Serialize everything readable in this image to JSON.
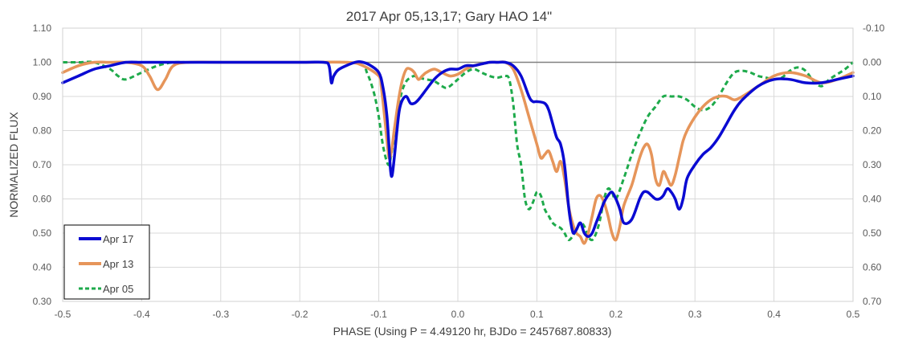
{
  "chart_data": {
    "type": "line",
    "title": "2017 Apr 05,13,17; Gary HAO 14\"",
    "xlabel": "PHASE (Using P = 4.49120 hr, BJDo = 2457687.80833)",
    "ylabel": "NORMALIZED FLUX",
    "xlim": [
      -0.5,
      0.5
    ],
    "ylim": [
      0.3,
      1.1
    ],
    "y2lim": [
      0.7,
      -0.1
    ],
    "grid": true,
    "legend_position": "bottom-left",
    "x_ticks": [
      "-0.5",
      "-0.4",
      "-0.3",
      "-0.2",
      "-0.1",
      "0.0",
      "0.1",
      "0.2",
      "0.3",
      "0.4",
      "0.5"
    ],
    "y_ticks": [
      "0.30",
      "0.40",
      "0.50",
      "0.60",
      "0.70",
      "0.80",
      "0.90",
      "1.00",
      "1.10"
    ],
    "y2_ticks": [
      "0.70",
      "0.60",
      "0.50",
      "0.40",
      "0.30",
      "0.20",
      "0.10",
      "0.00",
      "-0.10"
    ],
    "reference_line": 1.0,
    "series": [
      {
        "name": "Apr 17",
        "color": "#0a0ad2",
        "style": "solid",
        "x": [
          -0.5,
          -0.48,
          -0.46,
          -0.44,
          -0.42,
          -0.4,
          -0.38,
          -0.36,
          -0.3,
          -0.2,
          -0.17,
          -0.163,
          -0.16,
          -0.157,
          -0.15,
          -0.13,
          -0.12,
          -0.11,
          -0.1,
          -0.095,
          -0.09,
          -0.087,
          -0.085,
          -0.083,
          -0.08,
          -0.077,
          -0.074,
          -0.07,
          -0.065,
          -0.06,
          -0.055,
          -0.05,
          -0.04,
          -0.03,
          -0.02,
          -0.01,
          0.0,
          0.01,
          0.02,
          0.03,
          0.04,
          0.05,
          0.06,
          0.07,
          0.08,
          0.09,
          0.095,
          0.1,
          0.11,
          0.115,
          0.12,
          0.125,
          0.13,
          0.135,
          0.14,
          0.143,
          0.146,
          0.15,
          0.155,
          0.16,
          0.165,
          0.17,
          0.175,
          0.18,
          0.185,
          0.19,
          0.195,
          0.2,
          0.205,
          0.21,
          0.22,
          0.23,
          0.235,
          0.24,
          0.245,
          0.25,
          0.255,
          0.26,
          0.265,
          0.27,
          0.275,
          0.28,
          0.285,
          0.29,
          0.3,
          0.31,
          0.32,
          0.33,
          0.34,
          0.35,
          0.36,
          0.38,
          0.4,
          0.42,
          0.44,
          0.46,
          0.48,
          0.5
        ],
        "y": [
          0.94,
          0.96,
          0.98,
          0.99,
          1.0,
          1.0,
          1.0,
          1.0,
          1.0,
          1.0,
          1.0,
          0.99,
          0.94,
          0.96,
          0.98,
          1.0,
          1.0,
          0.99,
          0.97,
          0.93,
          0.85,
          0.75,
          0.68,
          0.67,
          0.73,
          0.8,
          0.86,
          0.89,
          0.9,
          0.88,
          0.88,
          0.89,
          0.92,
          0.95,
          0.97,
          0.98,
          0.98,
          0.99,
          0.99,
          0.995,
          1.0,
          1.0,
          1.0,
          0.99,
          0.96,
          0.9,
          0.885,
          0.885,
          0.88,
          0.86,
          0.82,
          0.78,
          0.76,
          0.7,
          0.58,
          0.53,
          0.5,
          0.51,
          0.53,
          0.5,
          0.49,
          0.5,
          0.53,
          0.56,
          0.59,
          0.61,
          0.62,
          0.6,
          0.57,
          0.53,
          0.54,
          0.6,
          0.62,
          0.62,
          0.61,
          0.6,
          0.6,
          0.61,
          0.63,
          0.62,
          0.6,
          0.57,
          0.6,
          0.66,
          0.7,
          0.73,
          0.75,
          0.78,
          0.82,
          0.86,
          0.89,
          0.93,
          0.95,
          0.95,
          0.94,
          0.94,
          0.95,
          0.96
        ]
      },
      {
        "name": "Apr 13",
        "color": "#e6955a",
        "style": "solid",
        "x": [
          -0.5,
          -0.48,
          -0.46,
          -0.44,
          -0.42,
          -0.4,
          -0.39,
          -0.38,
          -0.37,
          -0.36,
          -0.34,
          -0.3,
          -0.2,
          -0.14,
          -0.12,
          -0.1,
          -0.097,
          -0.094,
          -0.09,
          -0.087,
          -0.084,
          -0.08,
          -0.075,
          -0.07,
          -0.065,
          -0.06,
          -0.055,
          -0.05,
          -0.045,
          -0.04,
          -0.03,
          -0.02,
          -0.01,
          0.0,
          0.01,
          0.02,
          0.03,
          0.04,
          0.05,
          0.06,
          0.07,
          0.08,
          0.09,
          0.1,
          0.105,
          0.11,
          0.115,
          0.12,
          0.125,
          0.13,
          0.135,
          0.14,
          0.145,
          0.15,
          0.155,
          0.16,
          0.165,
          0.17,
          0.175,
          0.18,
          0.185,
          0.19,
          0.195,
          0.2,
          0.205,
          0.21,
          0.22,
          0.225,
          0.23,
          0.235,
          0.24,
          0.245,
          0.25,
          0.255,
          0.26,
          0.265,
          0.27,
          0.275,
          0.28,
          0.285,
          0.29,
          0.3,
          0.31,
          0.32,
          0.33,
          0.34,
          0.35,
          0.36,
          0.38,
          0.4,
          0.42,
          0.44,
          0.46,
          0.48,
          0.5
        ],
        "y": [
          0.97,
          0.99,
          1.0,
          1.0,
          1.0,
          0.99,
          0.96,
          0.92,
          0.95,
          0.99,
          1.0,
          1.0,
          1.0,
          1.0,
          0.99,
          0.96,
          0.93,
          0.87,
          0.78,
          0.72,
          0.74,
          0.81,
          0.89,
          0.95,
          0.98,
          0.98,
          0.97,
          0.95,
          0.96,
          0.97,
          0.98,
          0.97,
          0.96,
          0.965,
          0.98,
          0.99,
          0.995,
          1.0,
          1.0,
          1.0,
          0.98,
          0.92,
          0.84,
          0.76,
          0.72,
          0.73,
          0.74,
          0.71,
          0.68,
          0.71,
          0.66,
          0.58,
          0.53,
          0.5,
          0.49,
          0.47,
          0.5,
          0.55,
          0.6,
          0.61,
          0.59,
          0.55,
          0.5,
          0.48,
          0.52,
          0.58,
          0.64,
          0.68,
          0.72,
          0.75,
          0.76,
          0.73,
          0.66,
          0.64,
          0.68,
          0.66,
          0.64,
          0.67,
          0.72,
          0.77,
          0.8,
          0.84,
          0.87,
          0.89,
          0.9,
          0.9,
          0.89,
          0.9,
          0.93,
          0.96,
          0.97,
          0.96,
          0.94,
          0.95,
          0.97
        ]
      },
      {
        "name": "Apr 05",
        "color": "#1eaa4b",
        "style": "dashed",
        "x": [
          -0.5,
          -0.48,
          -0.46,
          -0.44,
          -0.43,
          -0.42,
          -0.4,
          -0.38,
          -0.36,
          -0.34,
          -0.3,
          -0.2,
          -0.14,
          -0.12,
          -0.115,
          -0.11,
          -0.105,
          -0.1,
          -0.095,
          -0.09,
          -0.087,
          -0.085,
          -0.082,
          -0.078,
          -0.074,
          -0.07,
          -0.065,
          -0.06,
          -0.055,
          -0.05,
          -0.04,
          -0.03,
          -0.02,
          -0.015,
          -0.01,
          0.0,
          0.01,
          0.02,
          0.03,
          0.04,
          0.05,
          0.06,
          0.065,
          0.07,
          0.075,
          0.08,
          0.085,
          0.09,
          0.095,
          0.1,
          0.105,
          0.11,
          0.115,
          0.12,
          0.125,
          0.13,
          0.135,
          0.14,
          0.145,
          0.15,
          0.155,
          0.16,
          0.165,
          0.17,
          0.175,
          0.18,
          0.185,
          0.19,
          0.195,
          0.2,
          0.21,
          0.22,
          0.23,
          0.24,
          0.25,
          0.26,
          0.27,
          0.28,
          0.29,
          0.3,
          0.31,
          0.32,
          0.33,
          0.34,
          0.35,
          0.36,
          0.37,
          0.38,
          0.39,
          0.4,
          0.41,
          0.42,
          0.43,
          0.44,
          0.45,
          0.46,
          0.47,
          0.48,
          0.49,
          0.5
        ],
        "y": [
          1.0,
          1.0,
          1.0,
          0.98,
          0.96,
          0.95,
          0.97,
          0.99,
          1.0,
          1.0,
          1.0,
          1.0,
          1.0,
          0.99,
          0.97,
          0.94,
          0.9,
          0.84,
          0.76,
          0.71,
          0.7,
          0.72,
          0.76,
          0.82,
          0.88,
          0.92,
          0.945,
          0.955,
          0.96,
          0.955,
          0.95,
          0.945,
          0.93,
          0.925,
          0.93,
          0.95,
          0.97,
          0.98,
          0.97,
          0.96,
          0.955,
          0.96,
          0.95,
          0.88,
          0.76,
          0.7,
          0.6,
          0.57,
          0.59,
          0.62,
          0.61,
          0.57,
          0.55,
          0.53,
          0.52,
          0.515,
          0.5,
          0.48,
          0.49,
          0.51,
          0.53,
          0.52,
          0.49,
          0.48,
          0.5,
          0.54,
          0.6,
          0.63,
          0.62,
          0.6,
          0.66,
          0.73,
          0.79,
          0.84,
          0.87,
          0.9,
          0.9,
          0.9,
          0.89,
          0.87,
          0.86,
          0.87,
          0.9,
          0.94,
          0.97,
          0.975,
          0.97,
          0.96,
          0.955,
          0.95,
          0.955,
          0.975,
          0.985,
          0.975,
          0.945,
          0.93,
          0.95,
          0.965,
          0.98,
          1.0
        ]
      }
    ]
  }
}
